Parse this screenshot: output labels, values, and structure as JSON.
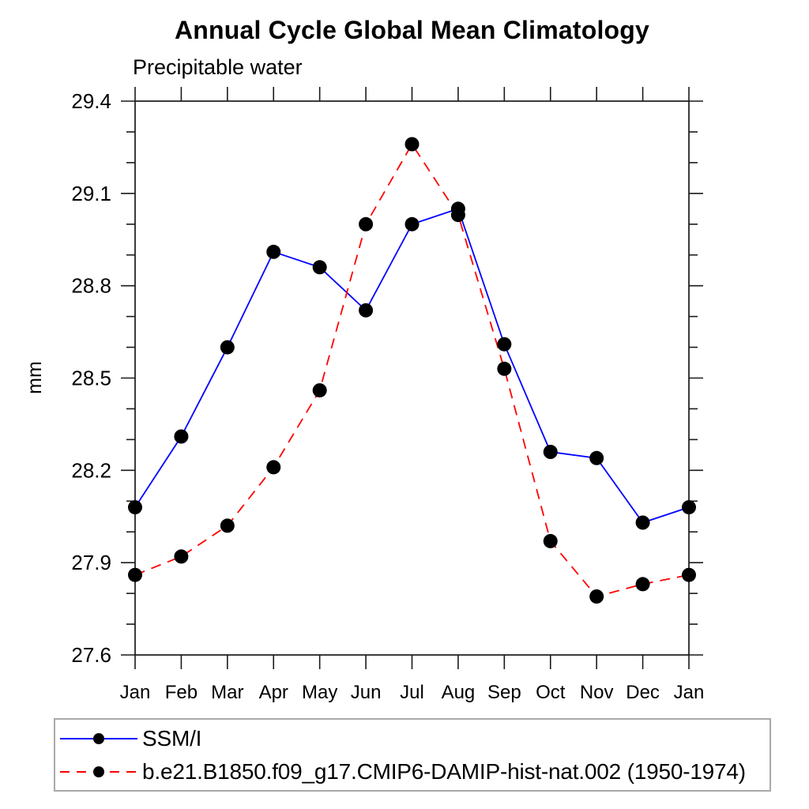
{
  "chart": {
    "title": "Annual Cycle Global Mean Climatology",
    "subtitle": "Precipitable water"
  },
  "chart_data": {
    "type": "line",
    "title": "Annual Cycle Global Mean Climatology",
    "subtitle": "Precipitable water",
    "xlabel": "",
    "ylabel": "mm",
    "categories": [
      "Jan",
      "Feb",
      "Mar",
      "Apr",
      "May",
      "Jun",
      "Jul",
      "Aug",
      "Sep",
      "Oct",
      "Nov",
      "Dec",
      "Jan"
    ],
    "ylim": [
      27.6,
      29.4
    ],
    "yticks": [
      "27.6",
      "27.9",
      "28.2",
      "28.5",
      "28.8",
      "29.1",
      "29.4"
    ],
    "ytick_minor_interval": 0.1,
    "grid": false,
    "legend_position": "bottom",
    "axis_color": "#1a1a1a",
    "marker_color": "#000000",
    "legend_border_color": "#a9a9a9",
    "series": [
      {
        "name": "SSM/I",
        "color": "#0000ff",
        "style": "solid",
        "marker": "circle",
        "values": [
          28.08,
          28.31,
          28.6,
          28.91,
          28.86,
          28.72,
          29.0,
          29.05,
          28.61,
          28.26,
          28.24,
          28.03,
          28.08
        ]
      },
      {
        "name": "b.e21.B1850.f09_g17.CMIP6-DAMIP-hist-nat.002 (1950-1974)",
        "color": "#ff0000",
        "style": "dashed",
        "marker": "circle",
        "values": [
          27.86,
          27.92,
          28.02,
          28.21,
          28.46,
          29.0,
          29.26,
          29.03,
          28.53,
          27.97,
          27.79,
          27.83,
          27.86
        ]
      }
    ]
  }
}
